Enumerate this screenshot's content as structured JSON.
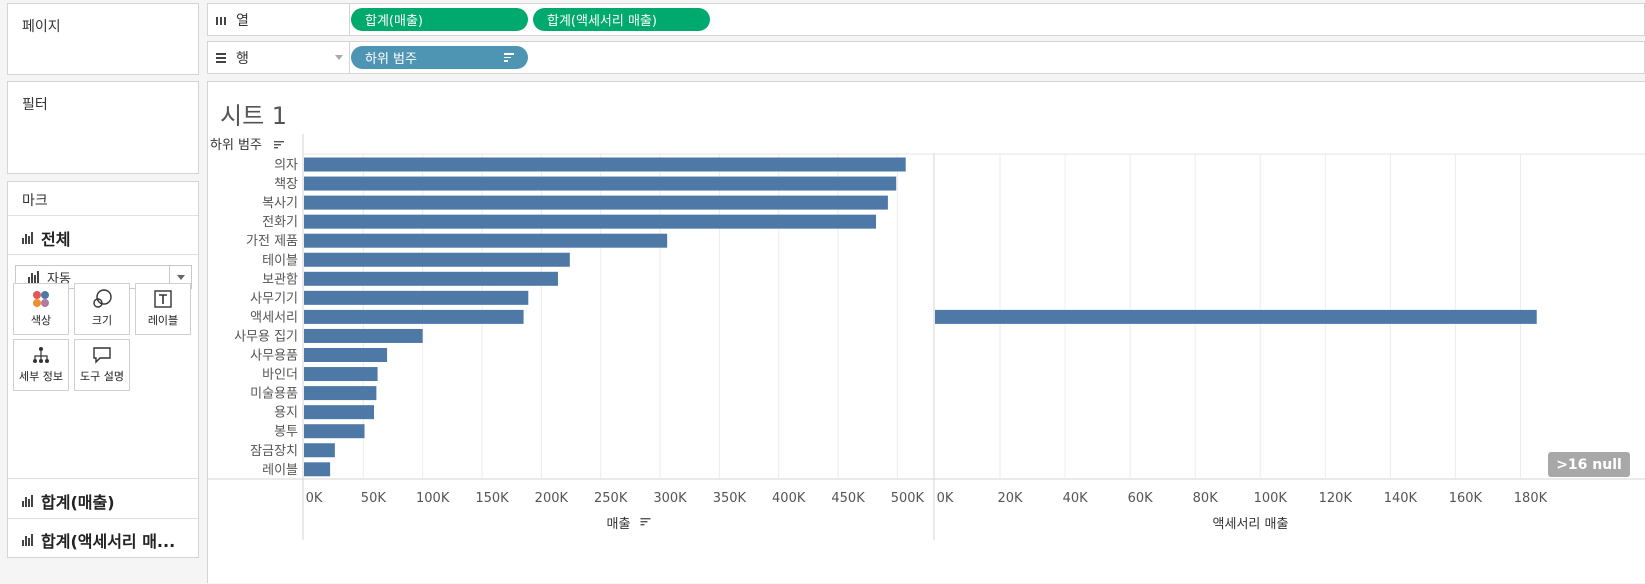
{
  "left": {
    "pages_title": "페이지",
    "filters_title": "필터",
    "marks_title": "마크",
    "all_label": "전체",
    "mark_type": "자동",
    "buttons": [
      {
        "label": "색상",
        "icon": "color-icon"
      },
      {
        "label": "크기",
        "icon": "size-icon"
      },
      {
        "label": "레이블",
        "icon": "label-icon"
      },
      {
        "label": "세부 정보",
        "icon": "detail-icon"
      },
      {
        "label": "도구 설명",
        "icon": "tooltip-icon"
      }
    ],
    "measure_1": "합계(매출)",
    "measure_2": "합계(액세서리 매..."
  },
  "shelves": {
    "columns_label": "열",
    "rows_label": "행",
    "column_pills": [
      "합계(매출)",
      "합계(액세서리 매출)"
    ],
    "row_pill": "하위 범주"
  },
  "sheet": {
    "title": "시트 1",
    "null_badge": ">16 null"
  },
  "colors": {
    "bar": "#4e79a7",
    "pill_green": "#00a96e",
    "pill_blue": "#4e95b3"
  },
  "chart_data": {
    "type": "bar",
    "orientation": "horizontal",
    "row_header": "하위 범주",
    "categories": [
      "의자",
      "책장",
      "복사기",
      "전화기",
      "가전 제품",
      "테이블",
      "보관함",
      "사무기기",
      "액세서리",
      "사무용 집기",
      "사무용품",
      "바인더",
      "미술용품",
      "용지",
      "봉투",
      "잠금장치",
      "레이블"
    ],
    "series": [
      {
        "name": "매출",
        "values": [
          507000,
          499000,
          492000,
          482000,
          306000,
          224000,
          214000,
          189000,
          185000,
          100000,
          70000,
          62000,
          61000,
          59000,
          51000,
          26000,
          22000
        ],
        "xlim": [
          0,
          530000
        ],
        "ticks": [
          "0K",
          "50K",
          "100K",
          "150K",
          "200K",
          "250K",
          "300K",
          "350K",
          "400K",
          "450K",
          "500K"
        ],
        "xlabel": "매출"
      },
      {
        "name": "액세서리 매출",
        "values": [
          null,
          null,
          null,
          null,
          null,
          null,
          null,
          null,
          185000,
          null,
          null,
          null,
          null,
          null,
          null,
          null,
          null
        ],
        "xlim": [
          0,
          194000
        ],
        "ticks": [
          "0K",
          "20K",
          "40K",
          "60K",
          "80K",
          "100K",
          "120K",
          "140K",
          "160K",
          "180K"
        ],
        "xlabel": "액세서리 매출"
      }
    ],
    "grid": true
  }
}
